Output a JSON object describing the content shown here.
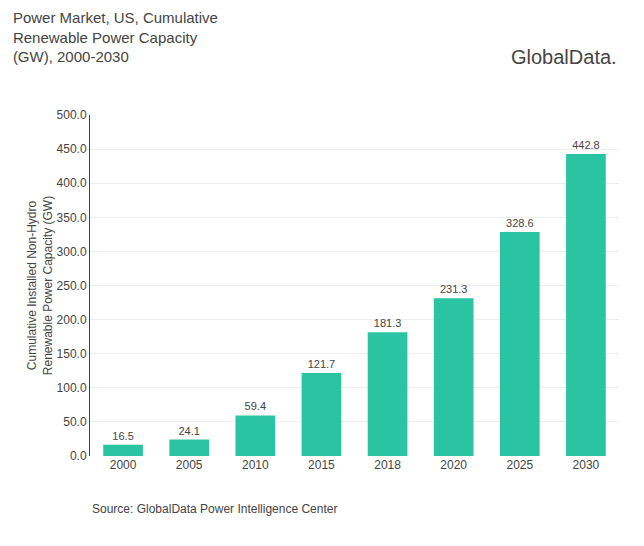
{
  "chart_data": {
    "type": "bar",
    "title": "Power Market, US, Cumulative\nRenewable Power Capacity\n(GW), 2000-2030",
    "ylabel": "Cumulative Installed Non-Hydro\nRenewable Power Capacity (GW)",
    "annotations": [
      "GlobalData.",
      "Source: GlobalData Power Intelligence Center"
    ],
    "categories": [
      "2000",
      "2005",
      "2010",
      "2015",
      "2018",
      "2020",
      "2025",
      "2030"
    ],
    "values": [
      16.5,
      24.1,
      59.4,
      121.7,
      181.3,
      231.3,
      328.6,
      442.8
    ],
    "color": "#2bc4a2",
    "ylim": [
      0,
      500
    ],
    "yticks": [
      {
        "value": 0,
        "label": "0.0"
      },
      {
        "value": 50,
        "label": "50.0"
      },
      {
        "value": 100,
        "label": "100.0"
      },
      {
        "value": 150,
        "label": "150.0"
      },
      {
        "value": 200,
        "label": "200.0"
      },
      {
        "value": 250,
        "label": "250.0"
      },
      {
        "value": 300,
        "label": "300.0"
      },
      {
        "value": 350,
        "label": "350.0"
      },
      {
        "value": 400,
        "label": "400.0"
      },
      {
        "value": 450,
        "label": "450.0"
      },
      {
        "value": 500,
        "label": "500.0"
      }
    ],
    "grid": true,
    "data_labels": true
  }
}
